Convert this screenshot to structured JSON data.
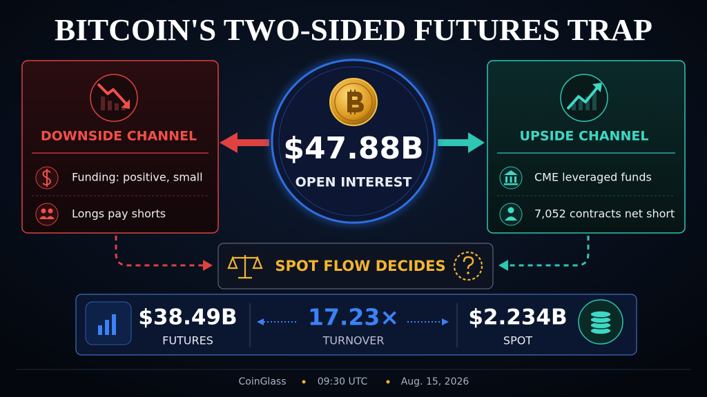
{
  "title": "BITCOIN'S TWO-SIDED FUTURES TRAP",
  "center": {
    "value": "$47.88B",
    "label": "OPEN INTEREST"
  },
  "downside": {
    "title": "DOWNSIDE CHANNEL",
    "items": [
      "Funding: positive, small",
      "Longs pay shorts"
    ]
  },
  "upside": {
    "title": "UPSIDE CHANNEL",
    "items": [
      "CME leveraged funds",
      "7,052 contracts net short"
    ]
  },
  "decision": "SPOT FLOW DECIDES",
  "metrics": [
    {
      "value": "$38.49B",
      "label": "FUTURES"
    },
    {
      "value": "17.23×",
      "label": "TURNOVER"
    },
    {
      "value": "$2.234B",
      "label": "SPOT"
    }
  ],
  "footer": [
    "CoinGlass",
    "09:30 UTC",
    "Aug. 15, 2026"
  ]
}
